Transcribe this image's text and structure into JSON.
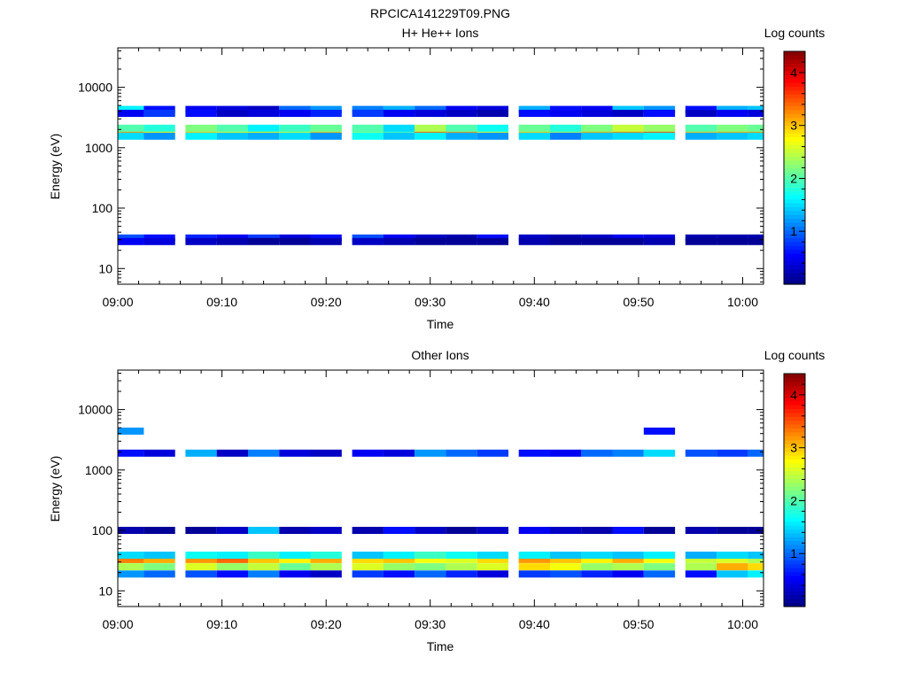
{
  "figure": {
    "title": "RPCICA141229T09.PNG"
  },
  "colormap": [
    "#00007f",
    "#0000ff",
    "#007fff",
    "#00ffff",
    "#7fff7f",
    "#ffff00",
    "#ff7f00",
    "#ff0000",
    "#7f0000"
  ],
  "chart_data": [
    {
      "type": "heatmap",
      "title": "H+ He++ Ions",
      "xlabel": "Time",
      "ylabel": "Energy (eV)",
      "colorbar_label": "Log counts",
      "colorbar_range": [
        0,
        4.4
      ],
      "colorbar_ticks": [
        1,
        2,
        3,
        4
      ],
      "x_range": [
        "09:00",
        "10:02"
      ],
      "x_ticks": [
        "09:00",
        "09:10",
        "09:20",
        "09:30",
        "09:40",
        "09:50",
        "10:00"
      ],
      "y_scale": "log",
      "y_range": [
        5.5,
        45000
      ],
      "y_ticks": [
        10,
        100,
        1000,
        10000
      ],
      "time_bins": [
        "09:01",
        "09:04",
        "09:08",
        "09:11",
        "09:14",
        "09:17",
        "09:20",
        "09:24",
        "09:27",
        "09:30",
        "09:33",
        "09:36",
        "09:40",
        "09:43",
        "09:46",
        "09:49",
        "09:52",
        "09:56",
        "09:59",
        "10:02"
      ],
      "bands": [
        {
          "energy": 1800,
          "values": [
            3.2,
            2.8,
            3.0,
            2.6,
            2.8,
            2.5,
            3.0,
            2.2,
            2.0,
            3.4,
            3.2,
            2.6,
            3.0,
            2.4,
            3.1,
            3.3,
            3.5,
            3.0,
            3.1,
            3.2
          ]
        },
        {
          "energy": 2100,
          "values": [
            2.0,
            1.8,
            2.2,
            2.0,
            1.6,
            1.9,
            2.1,
            2.0,
            1.5,
            2.4,
            2.0,
            1.7,
            2.1,
            1.8,
            2.2,
            2.5,
            2.3,
            2.0,
            2.2,
            2.1
          ]
        },
        {
          "energy": 1550,
          "values": [
            1.5,
            1.2,
            1.6,
            1.4,
            1.3,
            1.5,
            1.2,
            1.7,
            1.4,
            1.6,
            1.3,
            1.2,
            1.5,
            1.1,
            1.4,
            1.5,
            1.6,
            1.3,
            1.4,
            1.5
          ]
        },
        {
          "energy": 4300,
          "values": [
            1.6,
            0.6,
            0.5,
            0.4,
            0.3,
            1.0,
            1.2,
            1.1,
            1.3,
            1.0,
            0.5,
            0.4,
            1.3,
            0.6,
            0.5,
            1.4,
            1.2,
            0.6,
            1.3,
            1.4
          ]
        },
        {
          "energy": 3700,
          "values": [
            0.5,
            0.8,
            0.6,
            0.3,
            0.4,
            0.5,
            0.7,
            0.8,
            0.5,
            0.4,
            0.3,
            0.2,
            0.6,
            0.5,
            0.4,
            0.3,
            0.6,
            0.3,
            0.5,
            0.4
          ]
        },
        {
          "energy": 32,
          "values": [
            0.9,
            0.6,
            0.7,
            0.5,
            0.8,
            0.4,
            0.6,
            0.9,
            0.5,
            0.3,
            0.2,
            0.6,
            0.3,
            0.2,
            0.3,
            0.5,
            0.4,
            0.2,
            0.2,
            0.2
          ]
        },
        {
          "energy": 28,
          "values": [
            0.5,
            0.4,
            0.3,
            0.2,
            0.1,
            0.1,
            0.2,
            0.3,
            0.2,
            0.1,
            0.1,
            0.1,
            0.2,
            0.1,
            0.1,
            0.1,
            0.2,
            0.1,
            0.1,
            0.1
          ]
        }
      ]
    },
    {
      "type": "heatmap",
      "title": "Other Ions",
      "xlabel": "Time",
      "ylabel": "Energy (eV)",
      "colorbar_label": "Log counts",
      "colorbar_range": [
        0,
        4.4
      ],
      "colorbar_ticks": [
        1,
        2,
        3,
        4
      ],
      "x_range": [
        "09:00",
        "10:02"
      ],
      "x_ticks": [
        "09:00",
        "09:10",
        "09:20",
        "09:30",
        "09:40",
        "09:50",
        "10:00"
      ],
      "y_scale": "log",
      "y_range": [
        5.5,
        45000
      ],
      "y_ticks": [
        10,
        100,
        1000,
        10000
      ],
      "time_bins": [
        "09:01",
        "09:04",
        "09:08",
        "09:11",
        "09:14",
        "09:17",
        "09:20",
        "09:24",
        "09:27",
        "09:30",
        "09:33",
        "09:36",
        "09:40",
        "09:43",
        "09:46",
        "09:49",
        "09:52",
        "09:56",
        "09:59",
        "10:02"
      ],
      "bands": [
        {
          "energy": 33,
          "values": [
            3.3,
            3.1,
            3.2,
            3.4,
            3.0,
            2.8,
            3.1,
            2.9,
            3.0,
            2.7,
            2.6,
            2.9,
            3.2,
            3.0,
            2.8,
            3.1,
            2.7,
            2.5,
            2.6,
            2.4
          ]
        },
        {
          "energy": 25,
          "values": [
            2.4,
            2.2,
            2.6,
            2.3,
            2.5,
            2.1,
            2.4,
            2.6,
            2.3,
            2.2,
            2.4,
            2.6,
            2.9,
            2.7,
            2.3,
            2.4,
            2.2,
            2.4,
            3.1,
            2.9
          ]
        },
        {
          "energy": 39,
          "values": [
            1.5,
            1.4,
            1.7,
            1.6,
            1.9,
            1.6,
            1.8,
            1.4,
            1.6,
            1.9,
            1.7,
            1.5,
            1.6,
            1.4,
            1.5,
            1.4,
            1.6,
            1.3,
            1.5,
            1.4
          ]
        },
        {
          "energy": 19,
          "values": [
            1.2,
            1.0,
            0.9,
            0.6,
            1.1,
            0.5,
            0.3,
            0.8,
            0.6,
            1.0,
            0.7,
            0.4,
            0.8,
            0.9,
            0.7,
            0.5,
            1.0,
            0.6,
            1.4,
            1.6
          ]
        },
        {
          "energy": 1900,
          "values": [
            0.6,
            0.4,
            1.3,
            0.3,
            1.1,
            0.4,
            0.3,
            0.5,
            0.4,
            1.2,
            1.0,
            0.8,
            0.6,
            0.5,
            1.0,
            1.1,
            1.5,
            0.9,
            0.8,
            1.0
          ]
        },
        {
          "energy": 100,
          "values": [
            0.2,
            0.1,
            0.1,
            0.3,
            1.4,
            0.2,
            0.3,
            0.2,
            0.6,
            0.3,
            0.1,
            0.3,
            0.5,
            0.3,
            0.2,
            0.6,
            0.1,
            0.2,
            0.1,
            0.1
          ]
        },
        {
          "energy": 4400,
          "values": [
            1.2,
            0.0,
            0.0,
            0.0,
            0.0,
            0.0,
            0.0,
            0.0,
            0.0,
            0.0,
            0.0,
            0.0,
            0.0,
            0.0,
            0.0,
            0.0,
            0.6,
            0.0,
            0.0,
            0.0
          ]
        }
      ]
    }
  ]
}
